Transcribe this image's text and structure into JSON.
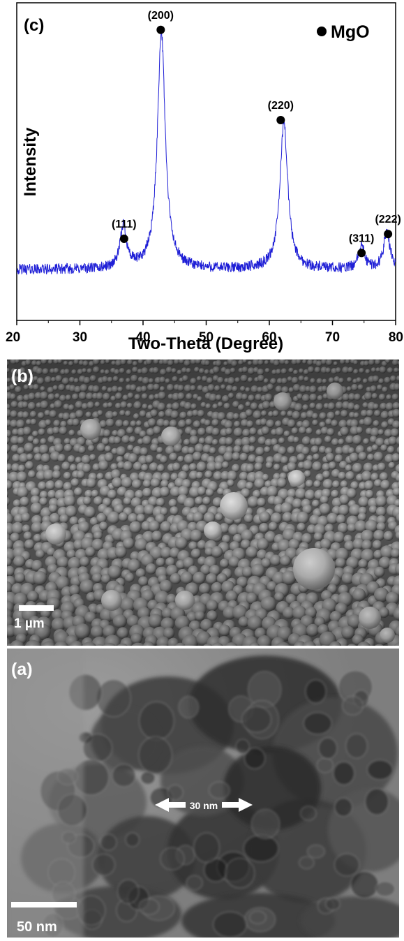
{
  "chart_data": {
    "type": "line",
    "panel_label": "(c)",
    "xlabel": "Two-Theta (Degree)",
    "ylabel": "Intensity",
    "xlim": [
      20,
      80
    ],
    "x_ticks": [
      20,
      30,
      40,
      50,
      60,
      70,
      80
    ],
    "y_tick_labels": false,
    "legend": {
      "marker": "●",
      "label": "MgO",
      "position": "top-right"
    },
    "series": [
      {
        "color": "#1f1fd6",
        "baseline": 0.07,
        "peaks": [
          {
            "x": 36.9,
            "height": 0.18,
            "width": 0.6
          },
          {
            "x": 42.9,
            "height": 1.0,
            "width": 0.75
          },
          {
            "x": 62.3,
            "height": 0.62,
            "width": 0.75
          },
          {
            "x": 74.6,
            "height": 0.1,
            "width": 0.55
          },
          {
            "x": 78.6,
            "height": 0.16,
            "width": 0.6
          }
        ]
      }
    ],
    "annotations": [
      {
        "text": "(111)",
        "x": 37.0,
        "y_marker": 0.2
      },
      {
        "text": "(200)",
        "x": 42.8,
        "y_marker": 1.08
      },
      {
        "text": "(220)",
        "x": 61.8,
        "y_marker": 0.7
      },
      {
        "text": "(311)",
        "x": 74.6,
        "y_marker": 0.14
      },
      {
        "text": "(222)",
        "x": 78.8,
        "y_marker": 0.22
      }
    ]
  },
  "sem": {
    "panel_label": "(b)",
    "scale_bar": "1 µm"
  },
  "tem": {
    "panel_label": "(a)",
    "scale_bar": "50 nm",
    "measurement": "30 nm"
  },
  "colors": {
    "xrd_line": "#1f1fd6",
    "sem_background": "#5a5a5a",
    "tem_background": "#8f8f8f"
  }
}
